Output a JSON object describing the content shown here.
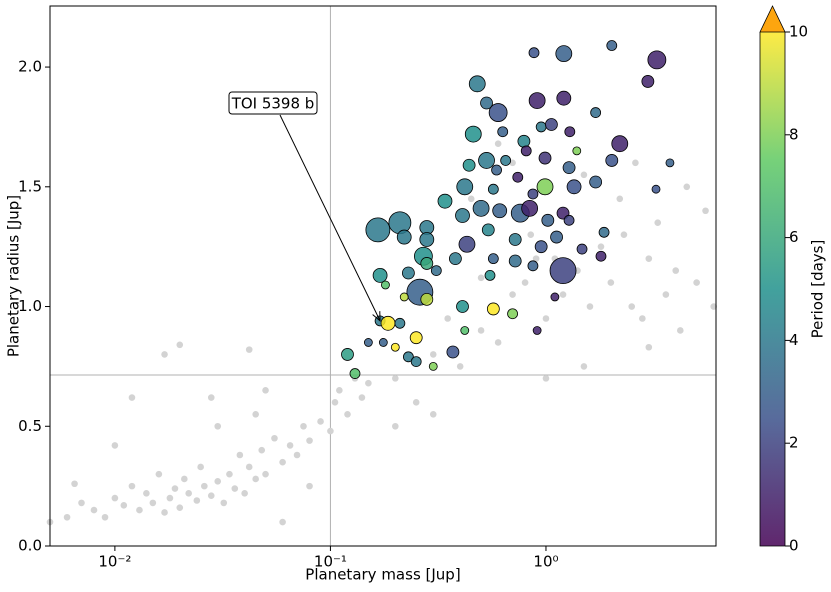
{
  "chart_data": {
    "type": "scatter",
    "x_label": "Planetary mass [Jup]",
    "y_label": "Planetary radius [Jup]",
    "log_x": true,
    "xlim": [
      0.005,
      6.15
    ],
    "ylim": [
      0,
      2.255
    ],
    "xticks": [
      {
        "value": 0.01,
        "label": "10⁻²"
      },
      {
        "value": 0.1,
        "label": "10⁻¹"
      },
      {
        "value": 1,
        "label": "10⁰"
      }
    ],
    "yticks": [
      {
        "value": 0,
        "label": "0.0"
      },
      {
        "value": 0.5,
        "label": "0.5"
      },
      {
        "value": 1,
        "label": "1.0"
      },
      {
        "value": 1.5,
        "label": "1.5"
      },
      {
        "value": 2,
        "label": "2.0"
      }
    ],
    "reference_lines": {
      "x": 0.1,
      "y": 0.714,
      "color": "#b0b0b0"
    },
    "annotation": {
      "text": "TOI 5398 b",
      "x": 0.17,
      "y": 0.94
    },
    "background": {
      "color": "#d3d3d3",
      "x": [
        0.005,
        0.006,
        0.0065,
        0.007,
        0.008,
        0.009,
        0.01,
        0.011,
        0.012,
        0.013,
        0.014,
        0.015,
        0.016,
        0.017,
        0.018,
        0.019,
        0.02,
        0.021,
        0.022,
        0.024,
        0.025,
        0.026,
        0.028,
        0.03,
        0.032,
        0.034,
        0.036,
        0.038,
        0.04,
        0.042,
        0.045,
        0.048,
        0.05,
        0.055,
        0.06,
        0.065,
        0.07,
        0.075,
        0.08,
        0.09,
        0.1,
        0.105,
        0.11,
        0.12,
        0.13,
        0.14,
        0.15,
        0.017,
        0.02,
        0.012,
        0.01,
        0.028,
        0.03,
        0.045,
        0.06,
        0.08,
        0.05,
        0.042,
        0.2,
        0.25,
        0.3,
        0.35,
        0.4,
        0.5,
        0.6,
        0.7,
        0.8,
        0.9,
        1.0,
        1.2,
        1.4,
        1.6,
        1.8,
        2.0,
        2.3,
        2.5,
        2.8,
        3.0,
        3.3,
        3.6,
        4.0,
        4.5,
        5.0,
        5.5,
        6.0,
        4.2,
        3.0,
        1.5,
        1.0,
        0.7,
        0.6,
        0.45,
        1.5,
        2.2,
        1.1,
        0.85,
        0.5,
        2.6,
        0.3,
        0.2
      ],
      "y": [
        0.1,
        0.12,
        0.26,
        0.18,
        0.15,
        0.12,
        0.2,
        0.17,
        0.25,
        0.15,
        0.22,
        0.18,
        0.3,
        0.14,
        0.2,
        0.24,
        0.16,
        0.28,
        0.22,
        0.19,
        0.33,
        0.25,
        0.21,
        0.27,
        0.18,
        0.3,
        0.24,
        0.38,
        0.22,
        0.33,
        0.28,
        0.4,
        0.3,
        0.45,
        0.35,
        0.42,
        0.38,
        0.5,
        0.44,
        0.52,
        0.48,
        0.6,
        0.65,
        0.55,
        0.7,
        0.62,
        0.68,
        0.8,
        0.84,
        0.62,
        0.42,
        0.62,
        0.5,
        0.55,
        0.1,
        0.25,
        0.65,
        0.82,
        0.7,
        0.6,
        0.8,
        0.95,
        0.75,
        0.9,
        0.85,
        1.05,
        1.1,
        1.2,
        0.95,
        1.05,
        1.15,
        1.0,
        1.25,
        1.1,
        1.3,
        1.0,
        0.95,
        1.2,
        1.35,
        1.05,
        1.15,
        1.5,
        1.1,
        1.4,
        1.0,
        0.9,
        0.83,
        0.75,
        0.7,
        1.6,
        1.68,
        1.45,
        1.55,
        1.45,
        1.2,
        1.3,
        1.12,
        1.6,
        0.55,
        0.5
      ]
    },
    "planets": {
      "x": [
        1.21,
        0.88,
        2.02,
        3.27,
        2.97,
        0.48,
        0.6,
        0.53,
        0.91,
        1.21,
        1.7,
        2.2,
        0.46,
        0.63,
        0.79,
        0.95,
        1.06,
        1.29,
        1.39,
        2.02,
        0.53,
        0.44,
        0.65,
        0.81,
        0.99,
        1.28,
        1.7,
        3.24,
        3.76,
        0.99,
        0.42,
        0.59,
        0.57,
        0.74,
        0.87,
        0.34,
        0.41,
        0.5,
        0.61,
        0.76,
        0.84,
        1.02,
        1.2,
        1.35,
        1.28,
        0.166,
        0.21,
        0.22,
        0.28,
        0.28,
        0.43,
        0.54,
        0.72,
        0.95,
        1.12,
        1.86,
        1.47,
        1.8,
        0.27,
        0.28,
        0.38,
        0.57,
        0.72,
        0.87,
        1.2,
        0.17,
        0.23,
        0.31,
        0.55,
        0.26,
        0.18,
        0.28,
        0.41,
        0.57,
        1.1,
        0.7,
        0.17,
        0.185,
        0.21,
        0.25,
        0.15,
        0.176,
        0.2,
        0.23,
        0.25,
        0.37,
        0.42,
        0.91,
        0.12,
        0.13,
        0.3,
        0.22
      ],
      "y": [
        2.056,
        2.06,
        2.09,
        2.03,
        1.94,
        1.93,
        1.81,
        1.85,
        1.86,
        1.87,
        1.81,
        1.68,
        1.72,
        1.73,
        1.69,
        1.75,
        1.76,
        1.73,
        1.65,
        1.61,
        1.61,
        1.59,
        1.61,
        1.65,
        1.62,
        1.58,
        1.52,
        1.49,
        1.6,
        1.5,
        1.5,
        1.57,
        1.49,
        1.54,
        1.47,
        1.44,
        1.38,
        1.41,
        1.4,
        1.39,
        1.41,
        1.36,
        1.39,
        1.5,
        1.36,
        1.32,
        1.35,
        1.29,
        1.33,
        1.28,
        1.26,
        1.32,
        1.28,
        1.25,
        1.29,
        1.31,
        1.24,
        1.21,
        1.21,
        1.18,
        1.2,
        1.2,
        1.19,
        1.17,
        1.15,
        1.13,
        1.14,
        1.15,
        1.13,
        1.06,
        1.09,
        1.03,
        1.0,
        0.99,
        1.04,
        0.97,
        0.94,
        0.93,
        0.93,
        0.87,
        0.85,
        0.85,
        0.83,
        0.79,
        0.77,
        0.81,
        0.9,
        0.9,
        0.8,
        0.72,
        0.75,
        1.04
      ],
      "period": [
        3,
        2.5,
        3,
        1,
        1,
        4,
        2.5,
        3.5,
        1,
        1,
        3.5,
        1,
        5,
        3,
        4.5,
        4,
        2,
        1,
        8,
        2.5,
        4,
        5,
        4,
        1,
        1.5,
        3,
        3,
        2.5,
        3,
        8,
        4,
        3,
        4,
        1,
        2,
        5,
        4,
        3.5,
        3,
        3,
        1,
        3,
        1,
        2.5,
        2,
        4,
        4,
        4,
        4,
        4,
        2,
        4.5,
        4,
        2.5,
        3,
        3.5,
        2,
        1,
        5,
        6,
        4,
        3,
        3.5,
        3,
        2,
        5,
        4,
        3.5,
        5,
        3,
        7,
        9,
        5,
        10,
        1,
        8,
        4,
        10,
        4,
        10,
        3,
        3,
        10,
        4,
        4,
        2.5,
        7,
        1,
        5.5,
        7,
        8,
        9
      ],
      "sizes": [
        8,
        5,
        5,
        9,
        6,
        8,
        9,
        6,
        8,
        7,
        5,
        8,
        8,
        5,
        6,
        5,
        6,
        5,
        4,
        6,
        8,
        6,
        5,
        5,
        6,
        6,
        6,
        4,
        4,
        8,
        8,
        5,
        5,
        5,
        5,
        7,
        7,
        8,
        7,
        9,
        8,
        6,
        6,
        7,
        5,
        12,
        11,
        7,
        7,
        7,
        8,
        6,
        6,
        6,
        6,
        5,
        5,
        5,
        9,
        6,
        6,
        5,
        6,
        5,
        13,
        7,
        6,
        5,
        5,
        13,
        4,
        6,
        6,
        6,
        4,
        5,
        5,
        7,
        5,
        6,
        4,
        4,
        4,
        5,
        5,
        6,
        4,
        4,
        6,
        5,
        4,
        4
      ]
    },
    "colorbar": {
      "label": "Period [days]",
      "colormap": "viridis",
      "lim": [
        0,
        10
      ],
      "ticks": [
        0,
        2,
        4,
        6,
        8,
        10
      ],
      "extend_color": "#fda50f"
    }
  }
}
